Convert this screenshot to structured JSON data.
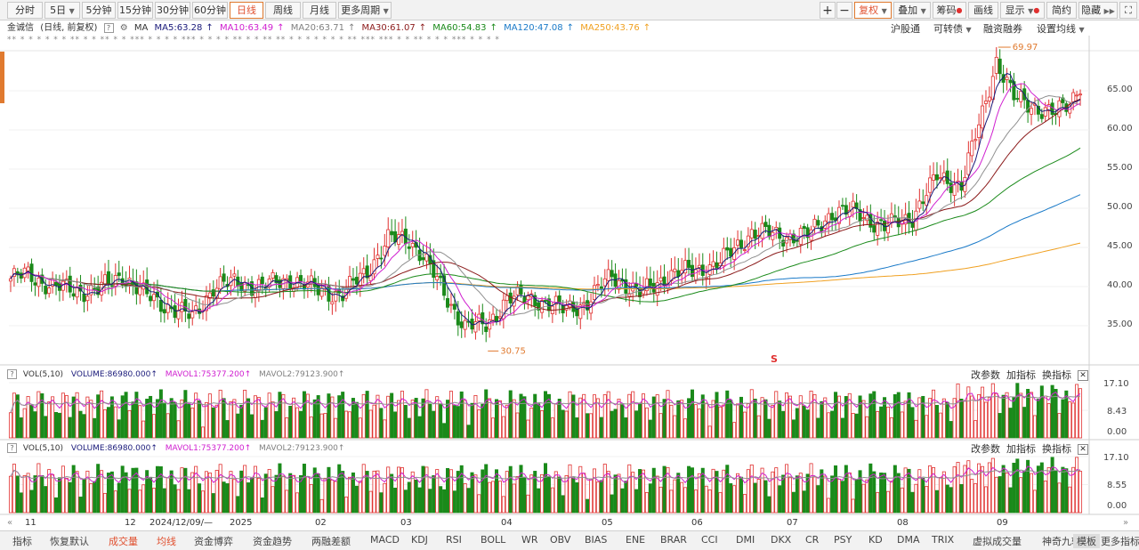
{
  "toolbar": {
    "periods": [
      "分时",
      "5日",
      "5分钟",
      "15分钟",
      "30分钟",
      "60分钟",
      "日线",
      "周线",
      "月线",
      "更多周期"
    ],
    "active_period": "日线",
    "right_buttons": [
      "复权",
      "叠加",
      "筹码",
      "画线",
      "显示",
      "简约",
      "隐藏"
    ]
  },
  "legend": {
    "stock": "金诚信",
    "mode": "(日线, 前复权)",
    "ma_label": "MA",
    "ma5": "MA5:63.28",
    "ma10": "MA10:63.49",
    "ma20": "MA20:63.71",
    "ma30": "MA30:61.07",
    "ma60": "MA60:54.83",
    "ma120": "MA120:47.08",
    "ma250": "MA250:43.76"
  },
  "right_links": [
    "沪股通",
    "可转债",
    "融资融券",
    "设置均线"
  ],
  "stars_row": "** *   *   * *  * * ** *  * **  *     *   ***   *    *  *   *        ***    *   *  *   *  **  *  *   **  **  *     *   *  *  *  *   *   ** ***  *** *  *  **  * *  * ***  *  * *  *",
  "colors": {
    "up": "#e0302f",
    "down": "#1a8a1a",
    "ma5": "#1a1a7a",
    "ma10": "#d020d0",
    "ma20": "#909090",
    "ma30": "#8b1a1a",
    "ma60": "#1a8a1a",
    "ma120": "#1a7ac8",
    "ma250": "#f0a020",
    "accent": "#e07a2f"
  },
  "price_axis": [
    "65.00",
    "60.00",
    "55.00",
    "50.00",
    "45.00",
    "40.00",
    "35.00"
  ],
  "annotations": {
    "high": "69.97",
    "low": "30.75",
    "marker": "S"
  },
  "vol_panels": [
    {
      "title": "VOL(5,10)",
      "volume": "VOLUME:86980.000",
      "mavol1": "MAVOL1:75377.200",
      "mavol2": "MAVOL2:79123.900",
      "axis": [
        "17.10",
        "8.43",
        "0.00"
      ]
    },
    {
      "title": "VOL(5,10)",
      "volume": "VOLUME:86980.000",
      "mavol1": "MAVOL1:75377.200",
      "mavol2": "MAVOL2:79123.900",
      "axis": [
        "17.10",
        "8.55",
        "0.00"
      ]
    }
  ],
  "panel_links": [
    "改参数",
    "加指标",
    "换指标"
  ],
  "x_axis": [
    "11",
    "12",
    "2024/12/09/—",
    "2025",
    "02",
    "03",
    "04",
    "05",
    "06",
    "07",
    "08",
    "09"
  ],
  "bottom_tabs": [
    "指标",
    "恢复默认",
    "成交量",
    "均线",
    "资金博弈",
    "资金趋势",
    "两融差额",
    "MACD",
    "KDJ",
    "RSI",
    "BOLL",
    "WR",
    "OBV",
    "BIAS",
    "ENE",
    "BRAR",
    "CCI",
    "DMI",
    "DKX",
    "CR",
    "PSY",
    "KD",
    "DMA",
    "TRIX",
    "虚拟成交量",
    "神奇九转",
    "更多指标",
    "模板"
  ],
  "chart_data": {
    "type": "candlestick",
    "price_ylim": [
      30,
      70
    ],
    "close_anchors": [
      [
        0,
        41
      ],
      [
        5,
        41.5
      ],
      [
        12,
        40
      ],
      [
        18,
        39.5
      ],
      [
        25,
        39.5
      ],
      [
        32,
        41.5
      ],
      [
        38,
        39
      ],
      [
        45,
        37.5
      ],
      [
        52,
        36
      ],
      [
        58,
        40
      ],
      [
        65,
        40.5
      ],
      [
        72,
        40
      ],
      [
        80,
        41
      ],
      [
        88,
        39.5
      ],
      [
        95,
        39
      ],
      [
        102,
        42
      ],
      [
        108,
        46
      ],
      [
        114,
        46
      ],
      [
        118,
        44
      ],
      [
        124,
        39
      ],
      [
        130,
        35
      ],
      [
        136,
        35
      ],
      [
        142,
        38.5
      ],
      [
        150,
        38.5
      ],
      [
        158,
        37
      ],
      [
        165,
        38
      ],
      [
        172,
        41.5
      ],
      [
        180,
        39
      ],
      [
        188,
        41.5
      ],
      [
        195,
        42
      ],
      [
        203,
        43
      ],
      [
        212,
        47
      ],
      [
        220,
        46.5
      ],
      [
        228,
        46.5
      ],
      [
        235,
        49.5
      ],
      [
        242,
        49.5
      ],
      [
        250,
        47.5
      ],
      [
        258,
        49
      ],
      [
        265,
        54
      ],
      [
        272,
        53
      ],
      [
        278,
        62
      ],
      [
        282,
        69
      ],
      [
        287,
        64
      ],
      [
        293,
        63
      ],
      [
        299,
        62
      ],
      [
        303,
        63.5
      ],
      [
        306,
        66
      ]
    ]
  }
}
